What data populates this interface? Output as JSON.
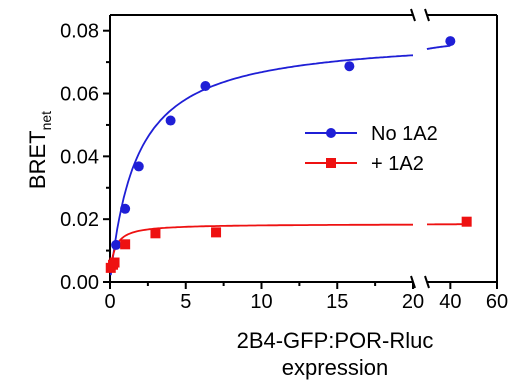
{
  "chart_data": {
    "type": "scatter",
    "ylabel": "BRET",
    "ylabel_subscript": "net",
    "xlabel_line1": "2B4-GFP:POR-Rluc",
    "xlabel_line2": "expression",
    "x_axis_break": true,
    "x_segments": [
      {
        "range": [
          0,
          20
        ],
        "ticks": [
          "0",
          "5",
          "10",
          "15",
          "20"
        ]
      },
      {
        "range": [
          30,
          60
        ],
        "ticks": [
          "40",
          "60"
        ]
      }
    ],
    "ylim": [
      0,
      0.085
    ],
    "y_ticks": [
      "0.00",
      "0.02",
      "0.04",
      "0.06",
      "0.08"
    ],
    "legend_position": "right",
    "series": [
      {
        "name": "No 1A2",
        "color": "#1f1fd6",
        "marker": "circle",
        "fit": "hyperbolic",
        "points": [
          {
            "x": 0.4,
            "y": 0.0118
          },
          {
            "x": 1.0,
            "y": 0.0233
          },
          {
            "x": 1.9,
            "y": 0.0368
          },
          {
            "x": 4.0,
            "y": 0.0514
          },
          {
            "x": 6.3,
            "y": 0.0624
          },
          {
            "x": 15.8,
            "y": 0.0687
          },
          {
            "x": 40,
            "y": 0.0767
          }
        ]
      },
      {
        "name": "+ 1A2",
        "color": "#ee1111",
        "marker": "square",
        "fit": "hyperbolic",
        "points": [
          {
            "x": 0.05,
            "y": 0.0045
          },
          {
            "x": 0.2,
            "y": 0.0055
          },
          {
            "x": 0.3,
            "y": 0.0062
          },
          {
            "x": 1.0,
            "y": 0.012
          },
          {
            "x": 3.0,
            "y": 0.0155
          },
          {
            "x": 7.0,
            "y": 0.0158
          },
          {
            "x": 47,
            "y": 0.0192
          }
        ]
      }
    ]
  }
}
